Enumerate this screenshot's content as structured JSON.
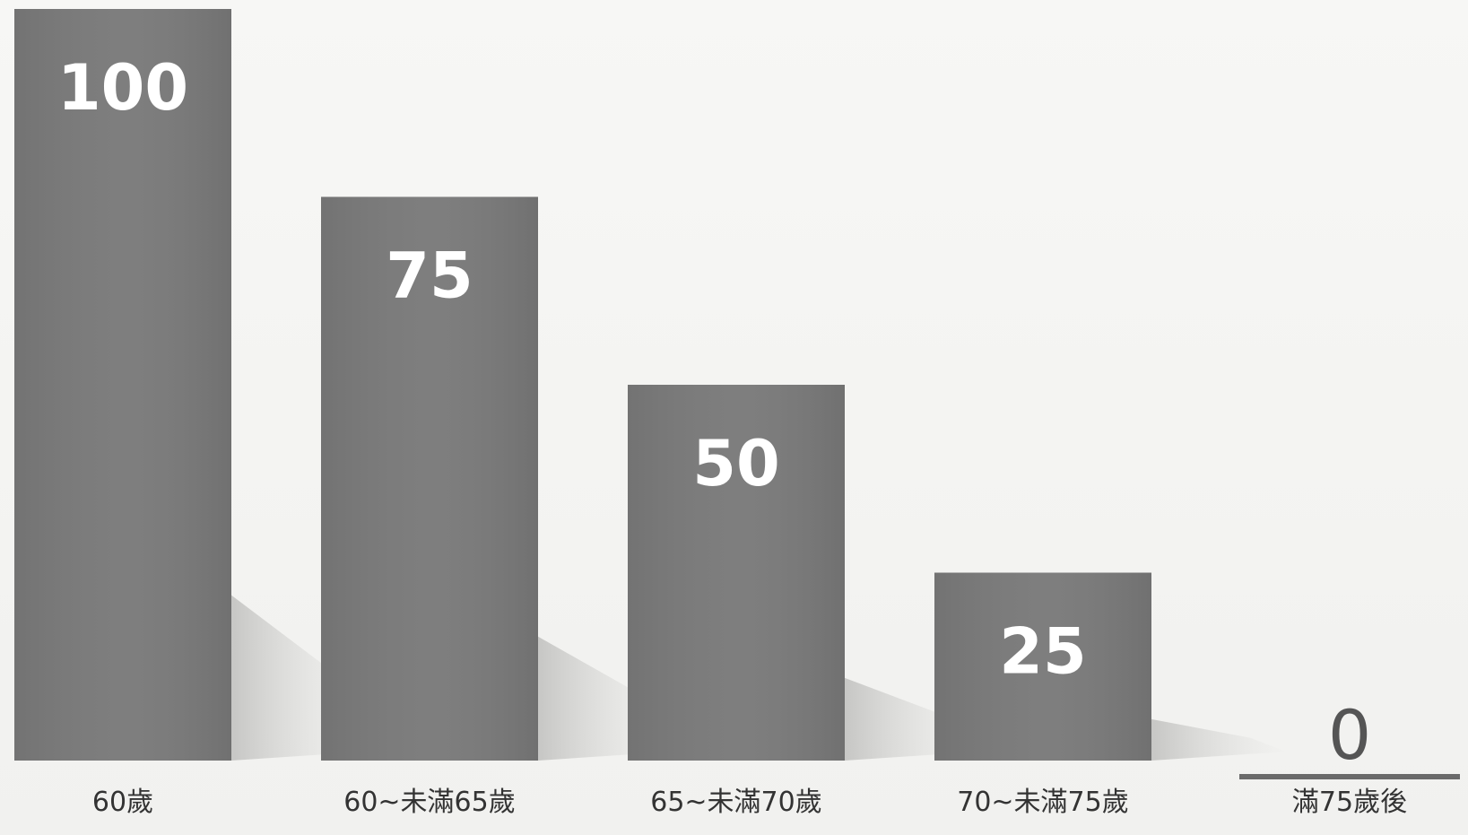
{
  "chart_data": {
    "type": "bar",
    "title": "",
    "xlabel": "",
    "ylabel": "",
    "ylim": [
      0,
      100
    ],
    "grid": false,
    "legend": "none",
    "categories": [
      "60歲",
      "60~未滿65歲",
      "65~未滿70歲",
      "70~未滿75歲",
      "滿75歲後"
    ],
    "values": [
      100,
      75,
      50,
      25,
      0
    ],
    "value_labels": [
      "100",
      "75",
      "50",
      "25",
      "0"
    ],
    "colors": {
      "bar": "#7a7a7a",
      "value_text": "#ffffff",
      "zero_value_text": "#555555",
      "label_text": "#333333",
      "shadow": "#c9c9c7"
    }
  }
}
